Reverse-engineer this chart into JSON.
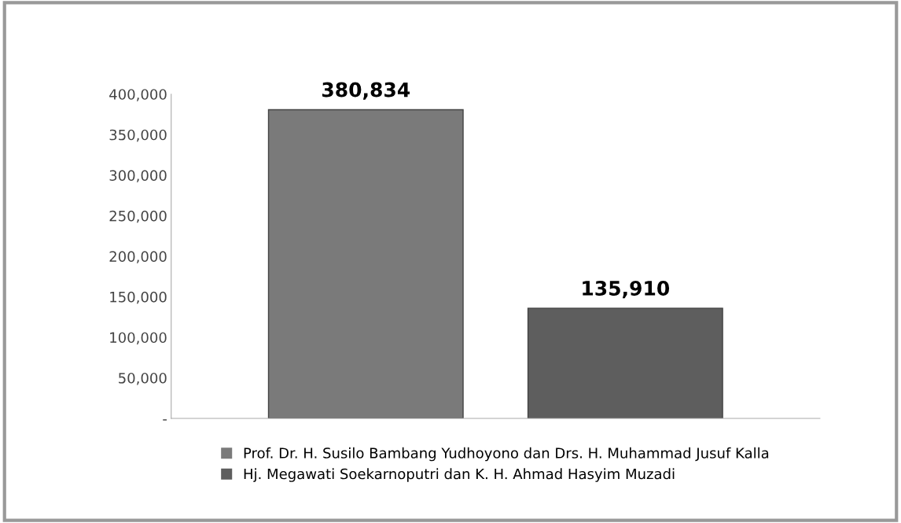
{
  "chart_data": {
    "type": "bar",
    "categories": [
      null
    ],
    "series": [
      {
        "name": "Prof. Dr. H. Susilo Bambang Yudhoyono dan Drs. H. Muhammad Jusuf Kalla",
        "color": "#7a7a7a",
        "values": [
          380834
        ],
        "value_labels": [
          "380,834"
        ]
      },
      {
        "name": "Hj. Megawati Soekarnoputri dan K. H. Ahmad Hasyim Muzadi",
        "color": "#5e5e5e",
        "values": [
          135910
        ],
        "value_labels": [
          "135,910"
        ]
      }
    ],
    "ylim": [
      0,
      400000
    ],
    "yticks": [
      {
        "value": 0,
        "label": "-"
      },
      {
        "value": 50000,
        "label": "50,000"
      },
      {
        "value": 100000,
        "label": "100,000"
      },
      {
        "value": 150000,
        "label": "150,000"
      },
      {
        "value": 200000,
        "label": "200,000"
      },
      {
        "value": 250000,
        "label": "250,000"
      },
      {
        "value": 300000,
        "label": "300,000"
      },
      {
        "value": 350000,
        "label": "350,000"
      },
      {
        "value": 400000,
        "label": "400,000"
      }
    ],
    "grid": false,
    "legend": "bottom"
  }
}
